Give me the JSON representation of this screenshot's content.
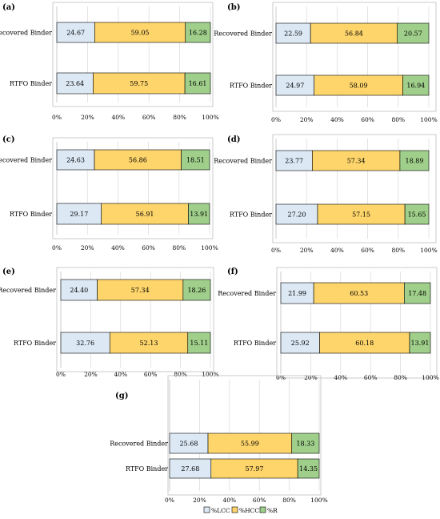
{
  "colors": {
    "lcc": "#dce9f5",
    "hcc": "#fed56b",
    "r": "#9fcf8a",
    "border": "#000000",
    "grid": "#d9d9d9",
    "frame": "#bfbfbf"
  },
  "legend": [
    "%LCC",
    "%HCC",
    "%R"
  ],
  "chart_data": [
    {
      "type": "bar",
      "panel": "(a)",
      "orientation": "horizontal",
      "stacked": true,
      "categories": [
        "Recovered Binder",
        "RTFO Binder"
      ],
      "series": [
        {
          "name": "%LCC",
          "values": [
            24.67,
            23.64
          ]
        },
        {
          "name": "%HCC",
          "values": [
            59.05,
            59.75
          ]
        },
        {
          "name": "%R",
          "values": [
            16.28,
            16.61
          ]
        }
      ],
      "xlim": [
        0,
        100
      ],
      "ticks": [
        "0%",
        "20%",
        "40%",
        "60%",
        "80%",
        "100%"
      ],
      "grid": true
    },
    {
      "type": "bar",
      "panel": "(b)",
      "orientation": "horizontal",
      "stacked": true,
      "categories": [
        "Recovered Binder",
        "RTFO Binder"
      ],
      "series": [
        {
          "name": "%LCC",
          "values": [
            22.59,
            24.97
          ]
        },
        {
          "name": "%HCC",
          "values": [
            56.84,
            58.09
          ]
        },
        {
          "name": "%R",
          "values": [
            20.57,
            16.94
          ]
        }
      ],
      "xlim": [
        0,
        100
      ],
      "ticks": [
        "0%",
        "20%",
        "40%",
        "60%",
        "80%",
        "100%"
      ],
      "grid": true
    },
    {
      "type": "bar",
      "panel": "(c)",
      "orientation": "horizontal",
      "stacked": true,
      "categories": [
        "Recovered Binder",
        "RTFO Binder"
      ],
      "series": [
        {
          "name": "%LCC",
          "values": [
            24.63,
            29.17
          ]
        },
        {
          "name": "%HCC",
          "values": [
            56.86,
            56.91
          ]
        },
        {
          "name": "%R",
          "values": [
            18.51,
            13.91
          ]
        }
      ],
      "xlim": [
        0,
        100
      ],
      "ticks": [
        "0%",
        "20%",
        "40%",
        "60%",
        "80%",
        "100%"
      ],
      "grid": true
    },
    {
      "type": "bar",
      "panel": "(d)",
      "orientation": "horizontal",
      "stacked": true,
      "categories": [
        "Recovered Binder",
        "RTFO Binder"
      ],
      "series": [
        {
          "name": "%LCC",
          "values": [
            23.77,
            27.2
          ]
        },
        {
          "name": "%HCC",
          "values": [
            57.34,
            57.15
          ]
        },
        {
          "name": "%R",
          "values": [
            18.89,
            15.65
          ]
        }
      ],
      "xlim": [
        0,
        100
      ],
      "ticks": [
        "0%",
        "20%",
        "40%",
        "60%",
        "80%",
        "100%"
      ],
      "grid": true
    },
    {
      "type": "bar",
      "panel": "(e)",
      "orientation": "horizontal",
      "stacked": true,
      "categories": [
        "Recovered Binder",
        "RTFO Binder"
      ],
      "series": [
        {
          "name": "%LCC",
          "values": [
            24.4,
            32.76
          ]
        },
        {
          "name": "%HCC",
          "values": [
            57.34,
            52.13
          ]
        },
        {
          "name": "%R",
          "values": [
            18.26,
            15.11
          ]
        }
      ],
      "xlim": [
        0,
        100
      ],
      "ticks": [
        "0%",
        "20%",
        "40%",
        "60%",
        "80%",
        "100%"
      ],
      "grid": true
    },
    {
      "type": "bar",
      "panel": "(f)",
      "orientation": "horizontal",
      "stacked": true,
      "categories": [
        "Recovered Binder",
        "RTFO Binder"
      ],
      "series": [
        {
          "name": "%LCC",
          "values": [
            21.99,
            25.92
          ]
        },
        {
          "name": "%HCC",
          "values": [
            60.53,
            60.18
          ]
        },
        {
          "name": "%R",
          "values": [
            17.48,
            13.91
          ]
        }
      ],
      "xlim": [
        0,
        100
      ],
      "ticks": [
        "0%",
        "20%",
        "40%",
        "60%",
        "80%",
        "100%"
      ],
      "grid": true
    },
    {
      "type": "bar",
      "panel": "(g)",
      "orientation": "horizontal",
      "stacked": true,
      "categories": [
        "Recovered Binder",
        "RTFO Binder"
      ],
      "series": [
        {
          "name": "%LCC",
          "values": [
            25.68,
            27.68
          ]
        },
        {
          "name": "%HCC",
          "values": [
            55.99,
            57.97
          ]
        },
        {
          "name": "%R",
          "values": [
            18.33,
            14.35
          ]
        }
      ],
      "xlim": [
        0,
        100
      ],
      "ticks": [
        "0%",
        "20%",
        "40%",
        "60%",
        "80%",
        "100%"
      ],
      "grid": true
    }
  ]
}
